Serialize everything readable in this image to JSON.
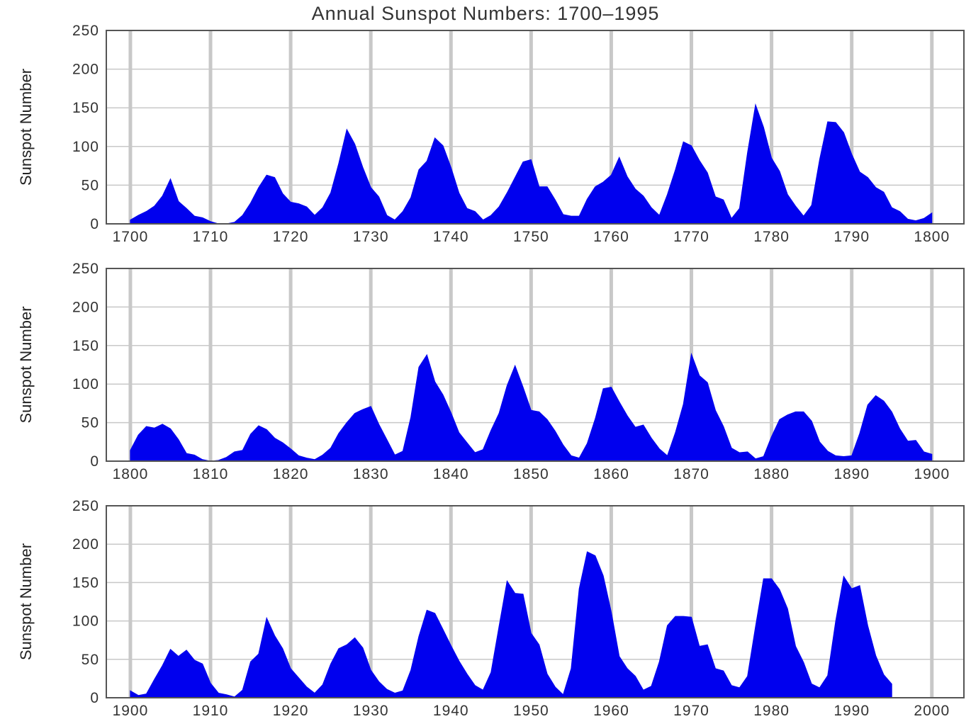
{
  "chart_data": [
    {
      "type": "area",
      "title": "Annual Sunspot Numbers: 1700–1995",
      "ylabel": "Sunspot Number",
      "xlim": [
        1697,
        1804
      ],
      "ylim": [
        0,
        250
      ],
      "grid": true,
      "x_ticks": [
        "1700",
        "1710",
        "1720",
        "1730",
        "1740",
        "1750",
        "1760",
        "1770",
        "1780",
        "1790",
        "1800"
      ],
      "y_ticks": [
        "0",
        "50",
        "100",
        "150",
        "200",
        "250"
      ],
      "series": [
        {
          "color": "#0000ee",
          "x": [
            1700,
            1701,
            1702,
            1703,
            1704,
            1705,
            1706,
            1707,
            1708,
            1709,
            1710,
            1711,
            1712,
            1713,
            1714,
            1715,
            1716,
            1717,
            1718,
            1719,
            1720,
            1721,
            1722,
            1723,
            1724,
            1725,
            1726,
            1727,
            1728,
            1729,
            1730,
            1731,
            1732,
            1733,
            1734,
            1735,
            1736,
            1737,
            1738,
            1739,
            1740,
            1741,
            1742,
            1743,
            1744,
            1745,
            1746,
            1747,
            1748,
            1749,
            1750,
            1751,
            1752,
            1753,
            1754,
            1755,
            1756,
            1757,
            1758,
            1759,
            1760,
            1761,
            1762,
            1763,
            1764,
            1765,
            1766,
            1767,
            1768,
            1769,
            1770,
            1771,
            1772,
            1773,
            1774,
            1775,
            1776,
            1777,
            1778,
            1779,
            1780,
            1781,
            1782,
            1783,
            1784,
            1785,
            1786,
            1787,
            1788,
            1789,
            1790,
            1791,
            1792,
            1793,
            1794,
            1795,
            1796,
            1797,
            1798,
            1799,
            1800
          ],
          "y": [
            5,
            11,
            16,
            23,
            36,
            58,
            29,
            20,
            10,
            8,
            3,
            0,
            0,
            2,
            11,
            27,
            47,
            63,
            60,
            39,
            28,
            26,
            22,
            11,
            21,
            40,
            78,
            122,
            103,
            73,
            47,
            35,
            11,
            5,
            16,
            34,
            70,
            81,
            111,
            101,
            73,
            40,
            20,
            16,
            5,
            11,
            22,
            40,
            60,
            80,
            83,
            48,
            48,
            31,
            12,
            10,
            10,
            32,
            48,
            54,
            63,
            86,
            61,
            45,
            36,
            21,
            11,
            38,
            70,
            106,
            101,
            82,
            66,
            35,
            31,
            7,
            20,
            92,
            154,
            125,
            85,
            68,
            38,
            23,
            10,
            24,
            83,
            132,
            131,
            118,
            90,
            67,
            60,
            47,
            41,
            21,
            16,
            6,
            4,
            7,
            14
          ]
        }
      ]
    },
    {
      "type": "area",
      "ylabel": "Sunspot Number",
      "xlim": [
        1797,
        1904
      ],
      "ylim": [
        0,
        250
      ],
      "grid": true,
      "x_ticks": [
        "1800",
        "1810",
        "1820",
        "1830",
        "1840",
        "1850",
        "1860",
        "1870",
        "1880",
        "1890",
        "1900"
      ],
      "y_ticks": [
        "0",
        "50",
        "100",
        "150",
        "200",
        "250"
      ],
      "series": [
        {
          "color": "#0000ee",
          "x": [
            1800,
            1801,
            1802,
            1803,
            1804,
            1805,
            1806,
            1807,
            1808,
            1809,
            1810,
            1811,
            1812,
            1813,
            1814,
            1815,
            1816,
            1817,
            1818,
            1819,
            1820,
            1821,
            1822,
            1823,
            1824,
            1825,
            1826,
            1827,
            1828,
            1829,
            1830,
            1831,
            1832,
            1833,
            1834,
            1835,
            1836,
            1837,
            1838,
            1839,
            1840,
            1841,
            1842,
            1843,
            1844,
            1845,
            1846,
            1847,
            1848,
            1849,
            1850,
            1851,
            1852,
            1853,
            1854,
            1855,
            1856,
            1857,
            1858,
            1859,
            1860,
            1861,
            1862,
            1863,
            1864,
            1865,
            1866,
            1867,
            1868,
            1869,
            1870,
            1871,
            1872,
            1873,
            1874,
            1875,
            1876,
            1877,
            1878,
            1879,
            1880,
            1881,
            1882,
            1883,
            1884,
            1885,
            1886,
            1887,
            1888,
            1889,
            1890,
            1891,
            1892,
            1893,
            1894,
            1895,
            1896,
            1897,
            1898,
            1899,
            1900
          ],
          "y": [
            14,
            34,
            45,
            43,
            48,
            42,
            28,
            10,
            8,
            2,
            0,
            1,
            5,
            12,
            14,
            35,
            46,
            41,
            30,
            24,
            16,
            7,
            4,
            2,
            8,
            17,
            36,
            50,
            62,
            67,
            71,
            48,
            28,
            8,
            13,
            57,
            122,
            138,
            103,
            86,
            63,
            37,
            24,
            11,
            15,
            40,
            62,
            98,
            124,
            96,
            66,
            64,
            54,
            39,
            21,
            7,
            4,
            23,
            55,
            94,
            96,
            77,
            59,
            44,
            47,
            30,
            16,
            7,
            37,
            74,
            139,
            111,
            102,
            66,
            45,
            17,
            11,
            12,
            3,
            6,
            32,
            54,
            60,
            64,
            64,
            52,
            25,
            13,
            7,
            6,
            7,
            36,
            73,
            85,
            78,
            64,
            42,
            26,
            27,
            12,
            9
          ]
        }
      ]
    },
    {
      "type": "area",
      "ylabel": "Sunspot Number",
      "xlim": [
        1897,
        2004
      ],
      "ylim": [
        0,
        250
      ],
      "grid": true,
      "x_ticks": [
        "1900",
        "1910",
        "1920",
        "1930",
        "1940",
        "1950",
        "1960",
        "1970",
        "1980",
        "1990",
        "2000"
      ],
      "y_ticks": [
        "0",
        "50",
        "100",
        "150",
        "200",
        "250"
      ],
      "series": [
        {
          "color": "#0000ee",
          "x": [
            1900,
            1901,
            1902,
            1903,
            1904,
            1905,
            1906,
            1907,
            1908,
            1909,
            1910,
            1911,
            1912,
            1913,
            1914,
            1915,
            1916,
            1917,
            1918,
            1919,
            1920,
            1921,
            1922,
            1923,
            1924,
            1925,
            1926,
            1927,
            1928,
            1929,
            1930,
            1931,
            1932,
            1933,
            1934,
            1935,
            1936,
            1937,
            1938,
            1939,
            1940,
            1941,
            1942,
            1943,
            1944,
            1945,
            1946,
            1947,
            1948,
            1949,
            1950,
            1951,
            1952,
            1953,
            1954,
            1955,
            1956,
            1957,
            1958,
            1959,
            1960,
            1961,
            1962,
            1963,
            1964,
            1965,
            1966,
            1967,
            1968,
            1969,
            1970,
            1971,
            1972,
            1973,
            1974,
            1975,
            1976,
            1977,
            1978,
            1979,
            1980,
            1981,
            1982,
            1983,
            1984,
            1985,
            1986,
            1987,
            1988,
            1989,
            1990,
            1991,
            1992,
            1993,
            1994,
            1995
          ],
          "y": [
            9,
            3,
            5,
            24,
            42,
            63,
            54,
            62,
            49,
            44,
            19,
            6,
            4,
            1,
            10,
            47,
            57,
            104,
            81,
            64,
            38,
            26,
            14,
            6,
            17,
            44,
            64,
            69,
            78,
            65,
            36,
            21,
            11,
            6,
            9,
            36,
            80,
            114,
            110,
            89,
            68,
            48,
            31,
            16,
            10,
            33,
            93,
            152,
            136,
            135,
            84,
            69,
            31,
            14,
            4,
            38,
            142,
            190,
            185,
            159,
            112,
            54,
            38,
            28,
            10,
            15,
            47,
            94,
            106,
            106,
            105,
            67,
            69,
            38,
            35,
            16,
            13,
            28,
            93,
            155,
            155,
            141,
            116,
            67,
            46,
            18,
            13,
            29,
            100,
            158,
            142,
            146,
            94,
            55,
            30,
            18
          ]
        }
      ]
    }
  ]
}
